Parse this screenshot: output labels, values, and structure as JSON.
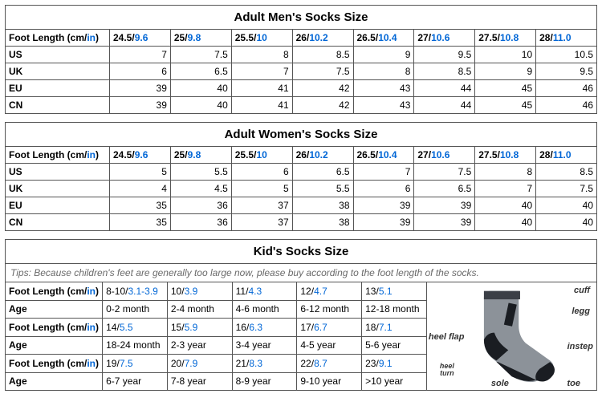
{
  "colors": {
    "inch_color": "#0066d6",
    "border_color": "#555555",
    "text_color": "#000000",
    "tips_color": "#6a6a6a"
  },
  "typography": {
    "base_font": "Arial",
    "base_size_pt": 9,
    "title_size_pt": 11
  },
  "foot_length_label_cm": "Foot Length (cm/",
  "foot_length_label_in": "in",
  "foot_length_label_close": ")",
  "men": {
    "title": "Adult Men's Socks Size",
    "cols_cm": [
      "24.5",
      "25",
      "25.5",
      "26",
      "26.5",
      "27",
      "27.5",
      "28"
    ],
    "cols_in": [
      "9.6",
      "9.8",
      "10",
      "10.2",
      "10.4",
      "10.6",
      "10.8",
      "11.0"
    ],
    "rows": [
      {
        "label": "US",
        "vals": [
          "7",
          "7.5",
          "8",
          "8.5",
          "9",
          "9.5",
          "10",
          "10.5"
        ]
      },
      {
        "label": "UK",
        "vals": [
          "6",
          "6.5",
          "7",
          "7.5",
          "8",
          "8.5",
          "9",
          "9.5"
        ]
      },
      {
        "label": "EU",
        "vals": [
          "39",
          "40",
          "41",
          "42",
          "43",
          "44",
          "45",
          "46"
        ]
      },
      {
        "label": "CN",
        "vals": [
          "39",
          "40",
          "41",
          "42",
          "43",
          "44",
          "45",
          "46"
        ]
      }
    ]
  },
  "women": {
    "title": "Adult Women's Socks Size",
    "cols_cm": [
      "24.5",
      "25",
      "25.5",
      "26",
      "26.5",
      "27",
      "27.5",
      "28"
    ],
    "cols_in": [
      "9.6",
      "9.8",
      "10",
      "10.2",
      "10.4",
      "10.6",
      "10.8",
      "11.0"
    ],
    "rows": [
      {
        "label": "US",
        "vals": [
          "5",
          "5.5",
          "6",
          "6.5",
          "7",
          "7.5",
          "8",
          "8.5"
        ]
      },
      {
        "label": "UK",
        "vals": [
          "4",
          "4.5",
          "5",
          "5.5",
          "6",
          "6.5",
          "7",
          "7.5"
        ]
      },
      {
        "label": "EU",
        "vals": [
          "35",
          "36",
          "37",
          "38",
          "39",
          "39",
          "40",
          "40"
        ]
      },
      {
        "label": "CN",
        "vals": [
          "35",
          "36",
          "37",
          "38",
          "39",
          "39",
          "40",
          "40"
        ]
      }
    ]
  },
  "kids": {
    "title": "Kid's Socks Size",
    "tips": "Tips: Because children's feet are generally too large now, please buy according to the foot length of the socks.",
    "label_fl": "Foot Length (cm/",
    "label_age": "Age",
    "rows": [
      {
        "type": "fl",
        "cm": [
          "8-10",
          "10",
          "11",
          "12",
          "13"
        ],
        "in": [
          "3.1-3.9",
          "3.9",
          "4.3",
          "4.7",
          "5.1"
        ]
      },
      {
        "type": "age",
        "vals": [
          "0-2 month",
          "2-4 month",
          "4-6 month",
          "6-12 month",
          "12-18 month"
        ]
      },
      {
        "type": "fl",
        "cm": [
          "14",
          "15",
          "16",
          "17",
          "18"
        ],
        "in": [
          "5.5",
          "5.9",
          "6.3",
          "6.7",
          "7.1"
        ]
      },
      {
        "type": "age",
        "vals": [
          "18-24 month",
          "2-3 year",
          "3-4 year",
          "4-5 year",
          "5-6 year"
        ]
      },
      {
        "type": "fl",
        "cm": [
          "19",
          "20",
          "21",
          "22",
          "23"
        ],
        "in": [
          "7.5",
          "7.9",
          "8.3",
          "8.7",
          "9.1"
        ]
      },
      {
        "type": "age",
        "vals": [
          "6-7 year",
          "7-8 year",
          "8-9 year",
          "9-10 year",
          ">10 year"
        ]
      }
    ],
    "sock_labels": {
      "cuff": "cuff",
      "legg": "legg",
      "instep": "instep",
      "toe": "toe",
      "sole": "sole",
      "heel_turn": "heel\nturn",
      "heel_flap": "heel flap"
    },
    "sock_colors": {
      "body": "#8c9299",
      "dark": "#1a1d22",
      "cuff_band": "#3b3f46"
    }
  }
}
